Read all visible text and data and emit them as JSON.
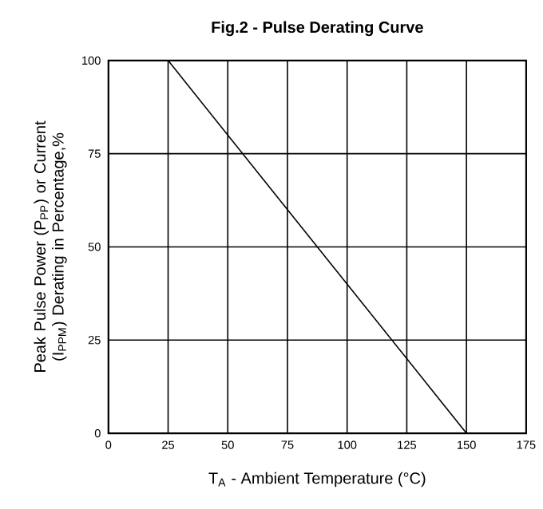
{
  "chart_data": {
    "type": "line",
    "title": "**Fig.2 - Pulse Derating Curve**",
    "xlabel": "T$_{A}$ - Ambient Temperature (°C)",
    "ylabel": "Peak Pulse Power (P$_{PP}$) or Current (I$_{PPM}$) Derating in Percentage,%",
    "series": [
      {
        "x": [
          25,
          150
        ],
        "values": [
          100,
          0
        ],
        "color": "#000000"
      }
    ],
    "xlim": [
      0,
      175
    ],
    "xticks": [
      0,
      25,
      50,
      75,
      100,
      125,
      150,
      175
    ],
    "ylim": [
      0,
      100
    ],
    "yticks": [
      0,
      25,
      50,
      75,
      100
    ],
    "grid": true,
    "marker": "none",
    "line_style": "solid"
  }
}
